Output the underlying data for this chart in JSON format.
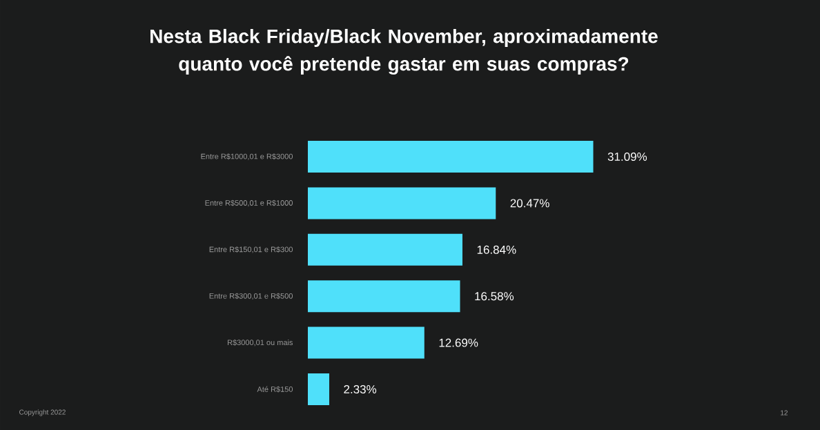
{
  "chart_data": {
    "type": "bar",
    "orientation": "horizontal",
    "title": "Nesta Black Friday/Black November, aproximadamente quanto você pretende gastar em suas compras?",
    "categories": [
      "Entre R$1000,01 e R$3000",
      "Entre R$500,01 e R$1000",
      "Entre R$150,01 e R$300",
      "Entre R$300,01 e R$500",
      "R$3000,01 ou mais",
      "Até R$150"
    ],
    "values": [
      31.09,
      20.47,
      16.84,
      16.58,
      12.69,
      2.33
    ],
    "value_labels": [
      "31.09%",
      "20.47%",
      "16.84%",
      "16.58%",
      "12.69%",
      "2.33%"
    ],
    "color": "#4fe0fa",
    "grid": false,
    "tick_labels": "y",
    "annotations": [
      "Copyright 2022",
      "12"
    ]
  }
}
